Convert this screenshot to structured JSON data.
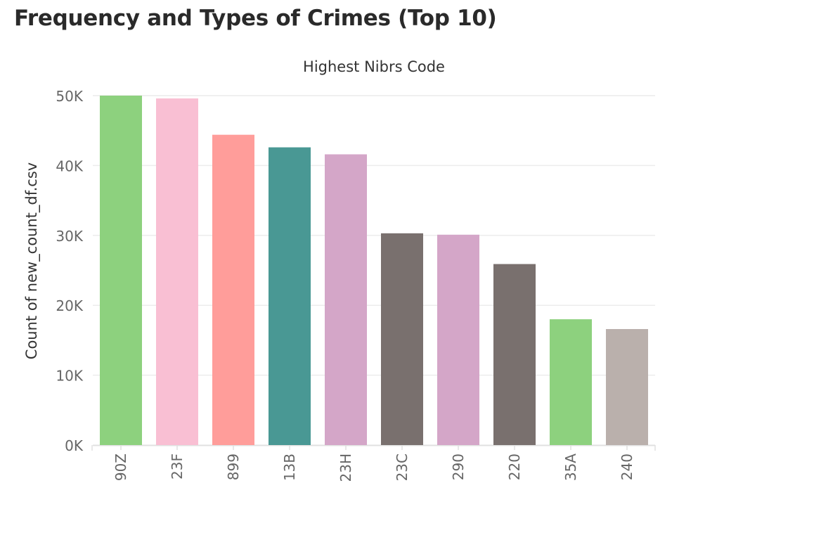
{
  "page": {
    "title": "Frequency and Types of Crimes (Top 10)"
  },
  "chart_data": {
    "type": "bar",
    "title": "Highest Nibrs Code",
    "xlabel": "",
    "ylabel": "Count of new_count_df.csv",
    "categories": [
      "90Z",
      "23F",
      "899",
      "13B",
      "23H",
      "23C",
      "290",
      "220",
      "35A",
      "240"
    ],
    "values": [
      50000,
      49600,
      44400,
      42600,
      41600,
      30300,
      30100,
      25900,
      18000,
      16600
    ],
    "colors": [
      "#8dd17e",
      "#f9bfd3",
      "#ff9d9a",
      "#499894",
      "#d4a6c8",
      "#79706e",
      "#d4a6c8",
      "#79706e",
      "#8dd17e",
      "#bab0ac"
    ],
    "ylim": [
      0,
      50000
    ],
    "yticks": [
      0,
      10000,
      20000,
      30000,
      40000,
      50000
    ],
    "ytick_labels": [
      "0K",
      "10K",
      "20K",
      "30K",
      "40K",
      "50K"
    ],
    "grid": true,
    "legend": "none"
  }
}
